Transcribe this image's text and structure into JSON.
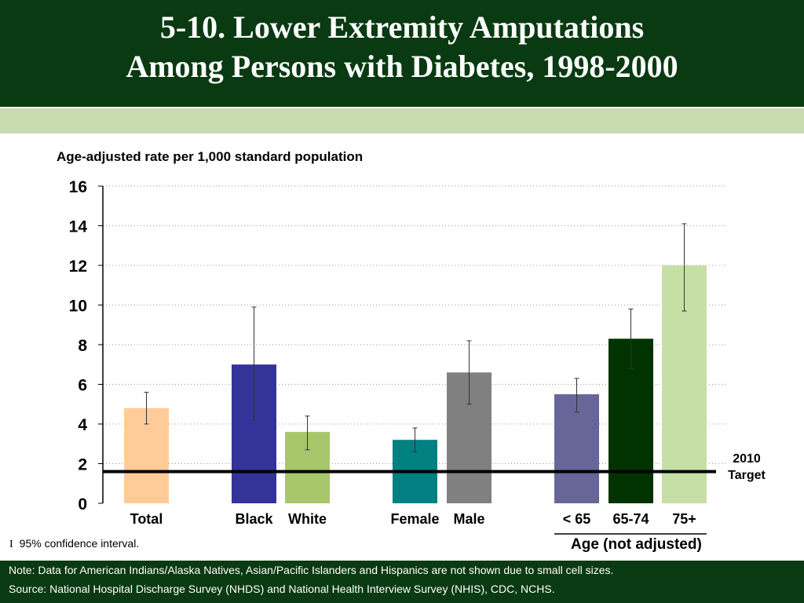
{
  "title_line1": "5-10. Lower Extremity Amputations",
  "title_line2": "Among Persons with Diabetes, 1998-2000",
  "ci_symbol": "I",
  "ci_note": "95% confidence interval.",
  "age_group_label": "Age (not adjusted)",
  "target_label_line1": "2010",
  "target_label_line2": "Target",
  "footer": {
    "note": "Note: Data for American Indians/Alaska Natives, Asian/Pacific Islanders and Hispanics are not shown due to small cell sizes.",
    "source": "Source: National Hospital Discharge Survey (NHDS) and National Health Interview Survey (NHIS), CDC, NCHS."
  },
  "chart_data": {
    "type": "bar",
    "title": "5-10. Lower Extremity Amputations Among Persons with Diabetes, 1998-2000",
    "ylabel": "Age-adjusted rate per 1,000 standard population",
    "xlabel": "",
    "ylim": [
      0,
      16
    ],
    "yticks": [
      "0",
      "2",
      "4",
      "6",
      "8",
      "10",
      "12",
      "14",
      "16"
    ],
    "grid": "horizontal dotted",
    "categories": [
      "Total",
      "Black",
      "White",
      "Female",
      "Male",
      "< 65",
      "65-74",
      "75+"
    ],
    "values": [
      4.8,
      7.0,
      3.6,
      3.2,
      6.6,
      5.5,
      8.3,
      12.0
    ],
    "ci_low": [
      4.0,
      4.2,
      2.7,
      2.6,
      5.0,
      4.6,
      6.8,
      9.7
    ],
    "ci_high": [
      5.6,
      9.9,
      4.4,
      3.8,
      8.2,
      6.3,
      9.8,
      14.1
    ],
    "colors": [
      "#ffcc99",
      "#333399",
      "#a8c66c",
      "#008080",
      "#808080",
      "#666699",
      "#003300",
      "#c5dfa5"
    ],
    "target": 1.6
  }
}
